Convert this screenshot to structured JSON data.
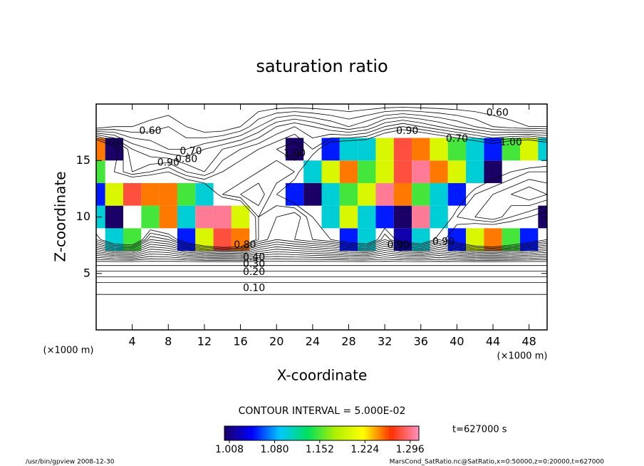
{
  "chart_data": {
    "type": "contour",
    "title": "saturation ratio",
    "x_label": "X-coordinate",
    "y_label": "Z-coordinate",
    "x_unit": "(×1000 m)",
    "y_unit": "(×1000 m)",
    "xlim": [
      0,
      50
    ],
    "ylim": [
      0,
      20
    ],
    "xticks": [
      4,
      8,
      12,
      16,
      20,
      24,
      28,
      32,
      36,
      40,
      44,
      48
    ],
    "yticks": [
      5,
      10,
      15
    ],
    "x": [
      0,
      2,
      4,
      6,
      8,
      10,
      12,
      14,
      16,
      18,
      20,
      22,
      24,
      26,
      28,
      30,
      32,
      34,
      36,
      38,
      40,
      42,
      44,
      46,
      48,
      50
    ],
    "y": [
      0,
      2,
      4,
      6,
      8,
      10,
      12,
      14,
      16,
      18,
      20
    ],
    "z": [
      [
        0.02,
        0.02,
        0.02,
        0.02,
        0.02,
        0.02,
        0.02,
        0.02,
        0.02,
        0.02,
        0.02,
        0.02,
        0.02,
        0.02,
        0.02,
        0.02,
        0.02,
        0.02,
        0.02,
        0.02,
        0.02,
        0.02,
        0.02,
        0.02,
        0.02,
        0.02
      ],
      [
        0.06,
        0.06,
        0.06,
        0.06,
        0.06,
        0.06,
        0.06,
        0.06,
        0.06,
        0.06,
        0.06,
        0.06,
        0.06,
        0.06,
        0.06,
        0.06,
        0.06,
        0.06,
        0.06,
        0.06,
        0.06,
        0.06,
        0.06,
        0.06,
        0.06,
        0.06
      ],
      [
        0.13,
        0.13,
        0.13,
        0.13,
        0.13,
        0.13,
        0.13,
        0.13,
        0.13,
        0.13,
        0.13,
        0.13,
        0.13,
        0.13,
        0.13,
        0.13,
        0.13,
        0.13,
        0.13,
        0.13,
        0.13,
        0.13,
        0.13,
        0.13,
        0.13,
        0.13
      ],
      [
        0.33,
        0.33,
        0.33,
        0.33,
        0.33,
        0.33,
        0.33,
        0.33,
        0.33,
        0.33,
        0.33,
        0.33,
        0.33,
        0.33,
        0.33,
        0.33,
        0.33,
        0.33,
        0.33,
        0.33,
        0.33,
        0.33,
        0.33,
        0.33,
        0.33,
        0.33
      ],
      [
        0.9,
        1.1,
        1.15,
        0.8,
        0.85,
        1.05,
        1.2,
        1.28,
        1.25,
        0.9,
        0.8,
        0.85,
        0.9,
        0.95,
        1.05,
        1.1,
        0.85,
        1.02,
        1.1,
        0.9,
        1.05,
        1.2,
        1.25,
        1.15,
        1.05,
        0.95
      ],
      [
        1.1,
        1.0,
        0.95,
        1.15,
        1.25,
        1.1,
        1.3,
        1.3,
        1.2,
        0.9,
        0.85,
        0.8,
        0.95,
        1.1,
        1.2,
        1.1,
        1.05,
        1.0,
        1.3,
        1.1,
        0.9,
        0.85,
        0.8,
        0.9,
        0.95,
        1.0
      ],
      [
        1.05,
        1.2,
        1.28,
        1.25,
        1.25,
        1.15,
        1.1,
        0.9,
        0.85,
        0.8,
        0.95,
        1.05,
        1.0,
        1.1,
        1.15,
        1.2,
        1.3,
        1.25,
        1.15,
        1.1,
        1.05,
        0.9,
        0.85,
        0.8,
        0.75,
        0.8
      ],
      [
        1.15,
        0.95,
        0.85,
        0.9,
        0.95,
        0.85,
        0.8,
        0.9,
        0.95,
        0.9,
        0.85,
        0.9,
        1.1,
        1.2,
        1.25,
        1.15,
        1.2,
        1.28,
        1.3,
        1.25,
        1.2,
        1.1,
        1.0,
        0.95,
        0.9,
        0.9
      ],
      [
        1.25,
        1.0,
        0.8,
        0.75,
        0.7,
        0.7,
        0.75,
        0.8,
        0.85,
        0.9,
        0.95,
        1.0,
        0.9,
        1.05,
        1.1,
        1.1,
        1.2,
        1.28,
        1.25,
        1.2,
        1.15,
        1.1,
        1.05,
        1.15,
        1.2,
        1.1
      ],
      [
        0.55,
        0.6,
        0.6,
        0.62,
        0.65,
        0.6,
        0.55,
        0.55,
        0.6,
        0.7,
        0.8,
        0.85,
        0.8,
        0.75,
        0.7,
        0.75,
        0.85,
        0.9,
        0.85,
        0.8,
        0.75,
        0.7,
        0.65,
        0.62,
        0.6,
        0.6
      ],
      [
        0.55,
        0.55,
        0.55,
        0.55,
        0.55,
        0.55,
        0.55,
        0.55,
        0.55,
        0.55,
        0.55,
        0.55,
        0.55,
        0.55,
        0.55,
        0.55,
        0.55,
        0.55,
        0.55,
        0.55,
        0.55,
        0.55,
        0.55,
        0.55,
        0.55,
        0.55
      ]
    ],
    "contour_levels": [
      0.1,
      0.15,
      0.2,
      0.25,
      0.3,
      0.35,
      0.4,
      0.45,
      0.5,
      0.55,
      0.6,
      0.65,
      0.7,
      0.75,
      0.8,
      0.85,
      0.9,
      0.95
    ],
    "contour_labels": [
      {
        "text": "0.10",
        "x": 17.5,
        "y": 3.7
      },
      {
        "text": "0.20",
        "x": 17.5,
        "y": 5.1
      },
      {
        "text": "0.30",
        "x": 17.5,
        "y": 5.8
      },
      {
        "text": "0.40",
        "x": 17.5,
        "y": 6.4
      },
      {
        "text": "0.80",
        "x": 16.5,
        "y": 7.5
      },
      {
        "text": "0.60",
        "x": 6,
        "y": 17.6
      },
      {
        "text": "0.70",
        "x": 10.5,
        "y": 15.8
      },
      {
        "text": "0.90",
        "x": 8,
        "y": 14.8
      },
      {
        "text": "0.80",
        "x": 10,
        "y": 15.1
      },
      {
        "text": "1.00",
        "x": 22,
        "y": 15.6
      },
      {
        "text": "0.90",
        "x": 34.5,
        "y": 17.6
      },
      {
        "text": "0.70",
        "x": 40,
        "y": 16.9
      },
      {
        "text": "1.00",
        "x": 46,
        "y": 16.6
      },
      {
        "text": "0.60",
        "x": 44.5,
        "y": 19.2
      },
      {
        "text": "0.90",
        "x": 33.5,
        "y": 7.5
      },
      {
        "text": "0.90",
        "x": 38.5,
        "y": 7.8
      }
    ],
    "colormap": [
      "#1a0066",
      "#0000ff",
      "#00c8ff",
      "#00e060",
      "#b0f000",
      "#ffff00",
      "#ff3000",
      "#ff90c0"
    ],
    "clim": [
      1.0,
      1.31
    ],
    "colorbar_ticks": [
      1.008,
      {
        "value": 1.08,
        "label": "1.080"
      },
      1.152,
      1.224,
      1.296
    ],
    "contour_interval_text": "CONTOUR INTERVAL = 5.000E-02",
    "time_text": "t=627000 s",
    "footer_left": "/usr/bin/gpview  2008-12-30",
    "footer_right": "MarsCond_SatRatio.nc@SatRatio,x=0:50000,z=0:20000,t=627000"
  }
}
